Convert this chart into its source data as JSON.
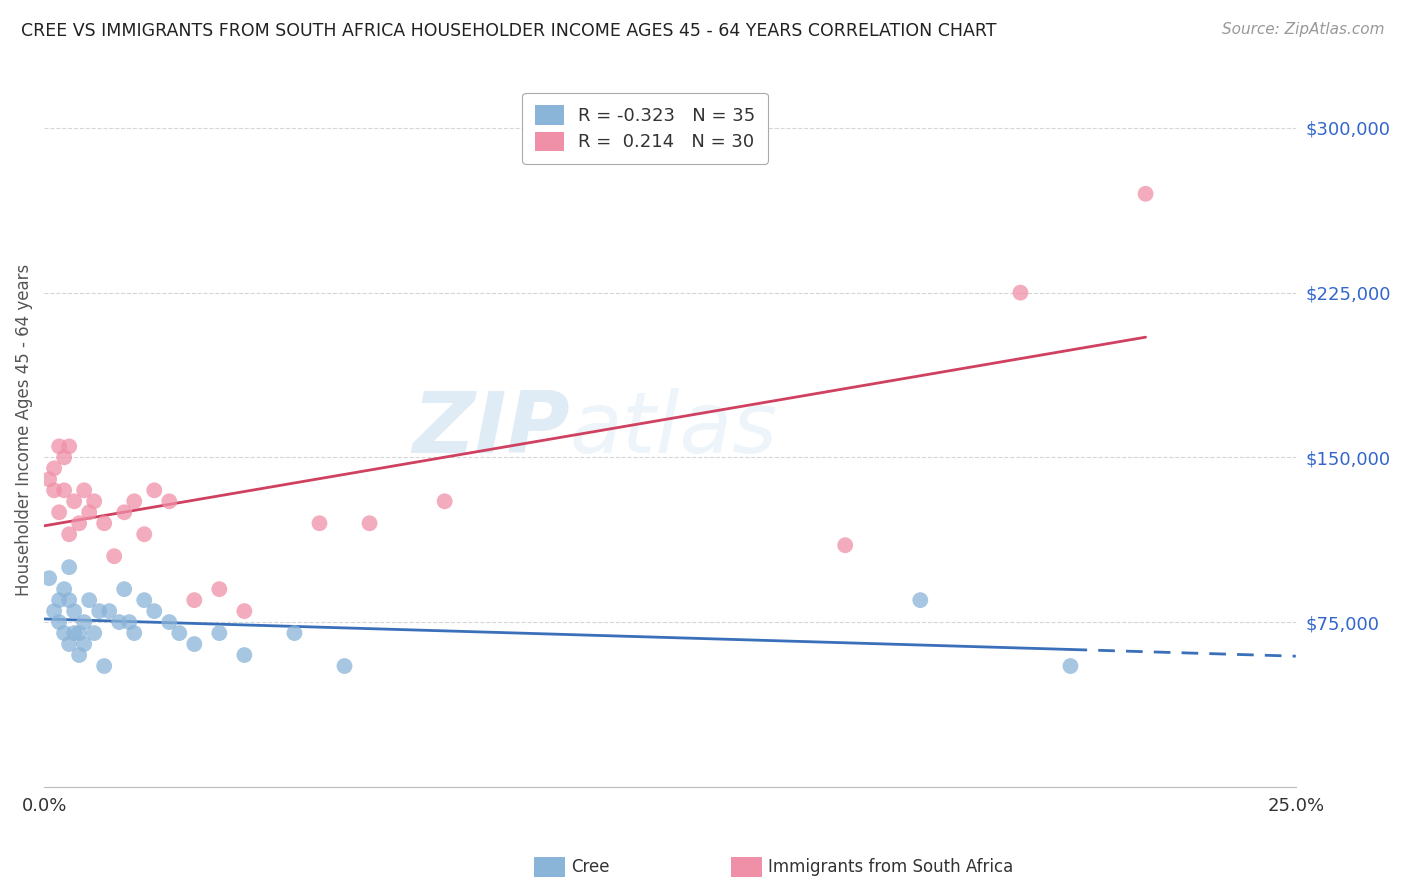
{
  "title": "CREE VS IMMIGRANTS FROM SOUTH AFRICA HOUSEHOLDER INCOME AGES 45 - 64 YEARS CORRELATION CHART",
  "source": "Source: ZipAtlas.com",
  "ylabel": "Householder Income Ages 45 - 64 years",
  "xlim": [
    0.0,
    0.25
  ],
  "ylim": [
    0,
    325000
  ],
  "yticks": [
    0,
    75000,
    150000,
    225000,
    300000
  ],
  "ytick_labels": [
    "",
    "$75,000",
    "$150,000",
    "$225,000",
    "$300,000"
  ],
  "xtick_positions": [
    0.0,
    0.05,
    0.1,
    0.15,
    0.2,
    0.25
  ],
  "xtick_labels": [
    "0.0%",
    "",
    "",
    "",
    "",
    "25.0%"
  ],
  "background_color": "#ffffff",
  "watermark_zip": "ZIP",
  "watermark_atlas": "atlas",
  "cree_color": "#8ab4d8",
  "immigrants_color": "#f090a8",
  "cree_line_color": "#3a6fba",
  "immigrants_line_color": "#d04060",
  "cree_R": -0.323,
  "cree_N": 35,
  "immigrants_R": 0.214,
  "immigrants_N": 30,
  "cree_x": [
    0.001,
    0.002,
    0.003,
    0.003,
    0.004,
    0.004,
    0.005,
    0.005,
    0.005,
    0.006,
    0.006,
    0.007,
    0.007,
    0.008,
    0.008,
    0.009,
    0.01,
    0.011,
    0.012,
    0.013,
    0.015,
    0.016,
    0.017,
    0.018,
    0.02,
    0.022,
    0.025,
    0.027,
    0.03,
    0.035,
    0.04,
    0.05,
    0.06,
    0.175,
    0.205
  ],
  "cree_y": [
    95000,
    80000,
    85000,
    75000,
    90000,
    70000,
    100000,
    65000,
    85000,
    80000,
    70000,
    60000,
    70000,
    65000,
    75000,
    85000,
    70000,
    80000,
    55000,
    80000,
    75000,
    90000,
    75000,
    70000,
    85000,
    80000,
    75000,
    70000,
    65000,
    70000,
    60000,
    70000,
    55000,
    85000,
    55000
  ],
  "immigrants_x": [
    0.001,
    0.002,
    0.002,
    0.003,
    0.003,
    0.004,
    0.004,
    0.005,
    0.005,
    0.006,
    0.007,
    0.008,
    0.009,
    0.01,
    0.012,
    0.014,
    0.016,
    0.018,
    0.02,
    0.022,
    0.025,
    0.03,
    0.035,
    0.04,
    0.055,
    0.065,
    0.08,
    0.16,
    0.195,
    0.22
  ],
  "immigrants_y": [
    140000,
    145000,
    135000,
    155000,
    125000,
    150000,
    135000,
    155000,
    115000,
    130000,
    120000,
    135000,
    125000,
    130000,
    120000,
    105000,
    125000,
    130000,
    115000,
    135000,
    130000,
    85000,
    90000,
    80000,
    120000,
    120000,
    130000,
    110000,
    225000,
    270000
  ]
}
